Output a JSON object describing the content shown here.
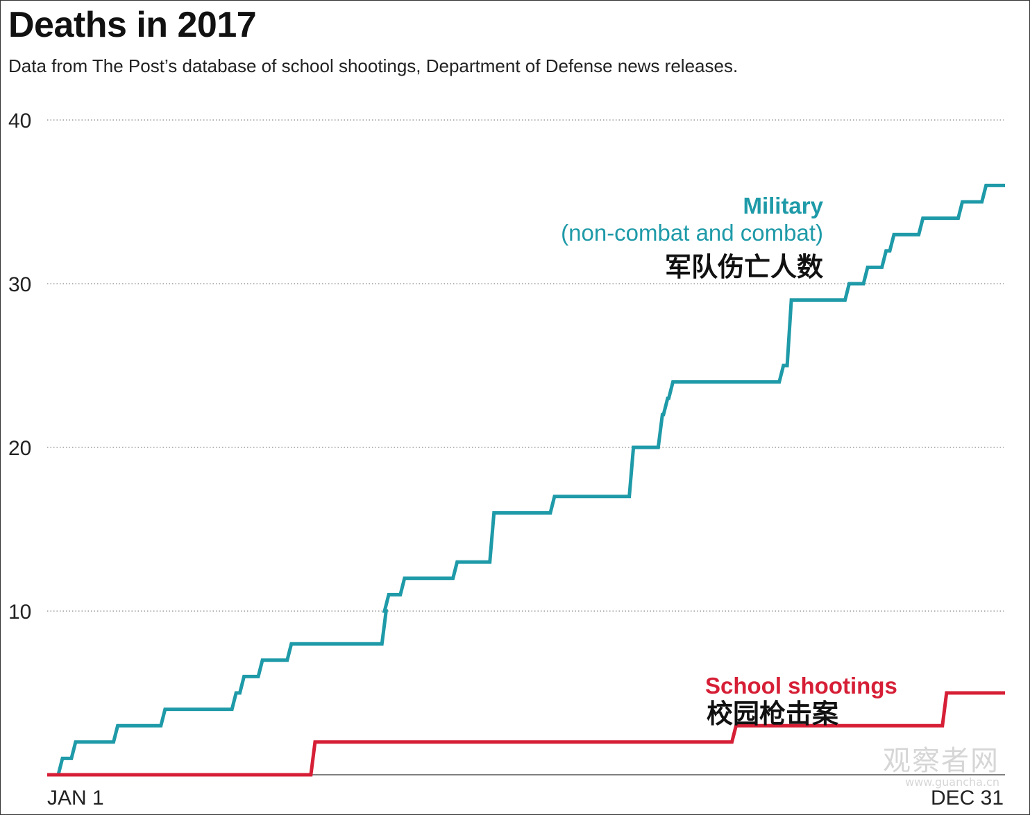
{
  "title": "Deaths in 2017",
  "subtitle": "Data from The Post’s database of school shootings, Department of Defense news releases.",
  "watermark": {
    "main": "观察者网",
    "url": "www.guancha.cn"
  },
  "colors": {
    "military": "#1e9aa8",
    "school": "#d61f36",
    "text": "#222222",
    "grid": "#888888"
  },
  "chart_data": {
    "type": "line",
    "title": "Deaths in 2017",
    "xlabel": "",
    "ylabel": "",
    "ylim": [
      0,
      40
    ],
    "xlim": [
      1,
      365
    ],
    "yticks": [
      10,
      20,
      30,
      40
    ],
    "yticklabels": [
      "10",
      "20",
      "30",
      "40"
    ],
    "xticklabels": [
      "JAN 1",
      "DEC 31"
    ],
    "grid": true,
    "series": [
      {
        "name": "Military (non-combat and combat)",
        "label_line1": "Military",
        "label_line2": "(non-combat and combat)",
        "label_cn": "军队伤亡人数",
        "color": "#1e9aa8",
        "steps": [
          [
            1,
            0
          ],
          [
            6,
            1
          ],
          [
            11,
            2
          ],
          [
            27,
            3
          ],
          [
            45,
            4
          ],
          [
            72,
            5
          ],
          [
            75,
            6
          ],
          [
            82,
            7
          ],
          [
            93,
            8
          ],
          [
            129,
            10
          ],
          [
            130,
            11
          ],
          [
            136,
            12
          ],
          [
            156,
            13
          ],
          [
            170,
            16
          ],
          [
            193,
            17
          ],
          [
            223,
            20
          ],
          [
            234,
            22
          ],
          [
            236,
            23
          ],
          [
            238,
            24
          ],
          [
            280,
            25
          ],
          [
            283,
            29
          ],
          [
            305,
            30
          ],
          [
            312,
            31
          ],
          [
            319,
            32
          ],
          [
            322,
            33
          ],
          [
            333,
            34
          ],
          [
            348,
            35
          ],
          [
            357,
            36
          ],
          [
            365,
            36
          ]
        ]
      },
      {
        "name": "School shootings",
        "label_line1": "School shootings",
        "label_cn": "校园枪击案",
        "color": "#d61f36",
        "steps": [
          [
            1,
            0
          ],
          [
            102,
            2
          ],
          [
            262,
            3
          ],
          [
            342,
            5
          ],
          [
            365,
            5
          ]
        ]
      }
    ]
  }
}
